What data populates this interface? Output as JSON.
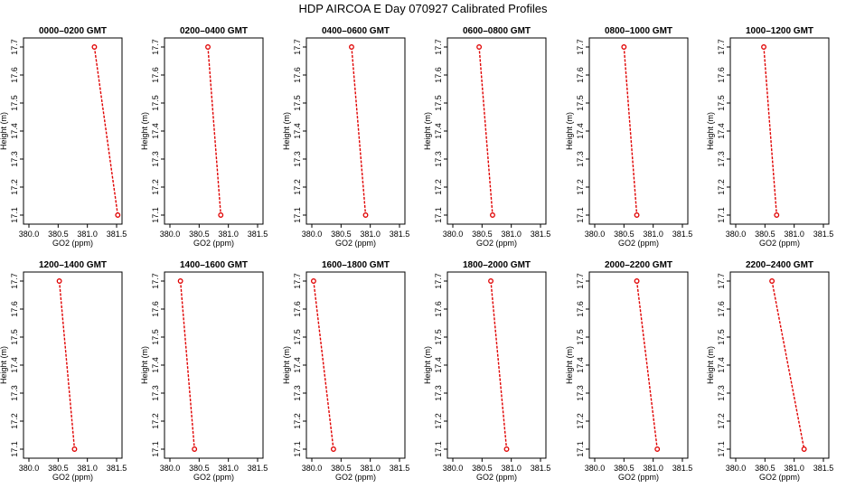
{
  "chart_data": {
    "type": "line",
    "title": "HDP  AIRCOA E  Day 070927  Calibrated Profiles",
    "xlabel": "GO2 (ppm)",
    "ylabel": "Height (m)",
    "xlim": [
      380.0,
      381.5
    ],
    "ylim": [
      17.1,
      17.7
    ],
    "xticks": [
      "380.0",
      "380.5",
      "381.0",
      "381.5"
    ],
    "yticks": [
      "17.1",
      "17.2",
      "17.3",
      "17.4",
      "17.5",
      "17.6",
      "17.7"
    ],
    "series_color": "#e00000",
    "panels": [
      {
        "title": "0000–0200 GMT",
        "points": [
          {
            "x": 381.12,
            "y": 17.7
          },
          {
            "x": 381.52,
            "y": 17.1
          }
        ]
      },
      {
        "title": "0200–0400 GMT",
        "points": [
          {
            "x": 380.65,
            "y": 17.7
          },
          {
            "x": 380.87,
            "y": 17.1
          }
        ]
      },
      {
        "title": "0400–0600 GMT",
        "points": [
          {
            "x": 380.68,
            "y": 17.7
          },
          {
            "x": 380.92,
            "y": 17.1
          }
        ]
      },
      {
        "title": "0600–0800 GMT",
        "points": [
          {
            "x": 380.45,
            "y": 17.7
          },
          {
            "x": 380.68,
            "y": 17.1
          }
        ]
      },
      {
        "title": "0800–1000 GMT",
        "points": [
          {
            "x": 380.5,
            "y": 17.7
          },
          {
            "x": 380.72,
            "y": 17.1
          }
        ]
      },
      {
        "title": "1000–1200 GMT",
        "points": [
          {
            "x": 380.48,
            "y": 17.7
          },
          {
            "x": 380.7,
            "y": 17.1
          }
        ]
      },
      {
        "title": "1200–1400 GMT",
        "points": [
          {
            "x": 380.52,
            "y": 17.7
          },
          {
            "x": 380.78,
            "y": 17.1
          }
        ]
      },
      {
        "title": "1400–1600 GMT",
        "points": [
          {
            "x": 380.18,
            "y": 17.7
          },
          {
            "x": 380.42,
            "y": 17.1
          }
        ]
      },
      {
        "title": "1600–1800 GMT",
        "points": [
          {
            "x": 380.03,
            "y": 17.7
          },
          {
            "x": 380.37,
            "y": 17.1
          }
        ]
      },
      {
        "title": "1800–2000 GMT",
        "points": [
          {
            "x": 380.65,
            "y": 17.7
          },
          {
            "x": 380.92,
            "y": 17.1
          }
        ]
      },
      {
        "title": "2000–2200 GMT",
        "points": [
          {
            "x": 380.72,
            "y": 17.7
          },
          {
            "x": 381.07,
            "y": 17.1
          }
        ]
      },
      {
        "title": "2200–2400 GMT",
        "points": [
          {
            "x": 380.62,
            "y": 17.7
          },
          {
            "x": 381.17,
            "y": 17.1
          }
        ]
      }
    ]
  }
}
